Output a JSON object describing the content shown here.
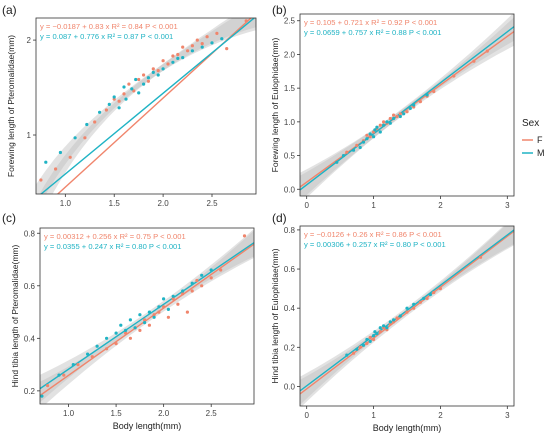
{
  "figure": {
    "legend": {
      "title": "Sex",
      "entries": [
        {
          "label": "F",
          "color": "#F0856C"
        },
        {
          "label": "M",
          "color": "#1FB3C4"
        }
      ]
    },
    "colors": {
      "F": "#F0856C",
      "M": "#1FB3C4",
      "band": "#BEBEBE",
      "axis": "#333333"
    }
  },
  "chart_data": [
    {
      "id": "a",
      "panel_label": "(a)",
      "type": "scatter",
      "xlabel": "",
      "ylabel": "Forewing length of Pteromalidae(mm)",
      "xlim": [
        0.7,
        2.95
      ],
      "ylim": [
        0.65,
        2.35
      ],
      "log_y": true,
      "xticks": [
        1.0,
        1.5,
        2.0,
        2.5
      ],
      "xtick_labels": [
        "1.0",
        "1.5",
        "2.0",
        "2.5"
      ],
      "yticks": [
        1,
        2
      ],
      "ytick_labels": [
        "1",
        "2"
      ],
      "equations": [
        {
          "sex": "F",
          "text": "y = −0.0187 + 0.83 x   R² = 0.84   P < 0.001"
        },
        {
          "sex": "M",
          "text": "y = 0.087 + 0.776 x   R² = 0.87   P < 0.001"
        }
      ],
      "series": [
        {
          "name": "F",
          "color": "#F0856C",
          "fit": [
            -0.0187,
            0.83
          ],
          "x": [
            0.75,
            0.9,
            1.05,
            1.2,
            1.3,
            1.42,
            1.5,
            1.55,
            1.6,
            1.65,
            1.7,
            1.75,
            1.8,
            1.85,
            1.9,
            1.95,
            2.0,
            2.05,
            2.1,
            2.15,
            2.2,
            2.25,
            2.3,
            2.35,
            2.4,
            2.45,
            2.55,
            2.65,
            2.85
          ],
          "y": [
            0.72,
            0.78,
            0.85,
            0.98,
            1.1,
            1.2,
            1.3,
            1.28,
            1.35,
            1.45,
            1.38,
            1.5,
            1.55,
            1.48,
            1.62,
            1.6,
            1.72,
            1.68,
            1.78,
            1.8,
            1.9,
            1.85,
            1.92,
            2.0,
            1.95,
            2.05,
            2.1,
            1.88,
            2.3
          ]
        },
        {
          "name": "M",
          "color": "#1FB3C4",
          "fit": [
            0.087,
            0.776
          ],
          "x": [
            0.8,
            0.95,
            1.1,
            1.22,
            1.35,
            1.45,
            1.5,
            1.55,
            1.6,
            1.62,
            1.68,
            1.72,
            1.75,
            1.8,
            1.85,
            1.9,
            1.95,
            2.0,
            2.1,
            2.15,
            2.2,
            2.3,
            2.4,
            2.5,
            2.6
          ],
          "y": [
            0.82,
            0.88,
            0.98,
            1.08,
            1.18,
            1.25,
            1.32,
            1.22,
            1.42,
            1.3,
            1.4,
            1.5,
            1.36,
            1.45,
            1.52,
            1.58,
            1.55,
            1.62,
            1.7,
            1.75,
            1.76,
            1.85,
            1.9,
            1.96,
            2.02
          ]
        }
      ]
    },
    {
      "id": "b",
      "panel_label": "(b)",
      "type": "scatter",
      "xlabel": "",
      "ylabel": "Forewing length of Eulophidae(mm)",
      "xlim": [
        -0.1,
        3.1
      ],
      "ylim": [
        -0.1,
        2.6
      ],
      "log_y": false,
      "xticks": [
        0,
        1,
        2,
        3
      ],
      "xtick_labels": [
        "0",
        "1",
        "2",
        "3"
      ],
      "yticks": [
        0,
        0.5,
        1.0,
        1.5,
        2.0,
        2.5
      ],
      "ytick_labels": [
        "0.0",
        "0.5",
        "1.0",
        "1.5",
        "2.0",
        "2.5"
      ],
      "equations": [
        {
          "sex": "F",
          "text": "y = 0.105 + 0.721 x   R² = 0.92   P < 0.001"
        },
        {
          "sex": "M",
          "text": "y = 0.0659 + 0.757 x   R² = 0.88   P < 0.001"
        }
      ],
      "series": [
        {
          "name": "F",
          "color": "#F0856C",
          "fit": [
            0.105,
            0.721
          ],
          "x": [
            0.6,
            0.75,
            0.85,
            0.9,
            0.95,
            1.0,
            1.05,
            1.1,
            1.15,
            1.2,
            1.25,
            1.3,
            1.35,
            1.4,
            1.5,
            1.6,
            1.7,
            1.8,
            1.9,
            2.2,
            2.5,
            2.7
          ],
          "y": [
            0.55,
            0.65,
            0.72,
            0.8,
            0.78,
            0.85,
            0.9,
            0.95,
            1.0,
            0.98,
            1.05,
            1.1,
            1.08,
            1.12,
            1.15,
            1.22,
            1.3,
            1.38,
            1.45,
            1.68,
            1.9,
            2.05
          ]
        },
        {
          "name": "M",
          "color": "#1FB3C4",
          "fit": [
            0.0659,
            0.757
          ],
          "x": [
            0.45,
            0.55,
            0.7,
            0.8,
            0.85,
            0.9,
            0.95,
            1.0,
            1.02,
            1.05,
            1.1,
            1.15,
            1.2,
            1.25,
            1.3,
            1.4,
            1.45,
            1.55,
            1.6,
            1.8
          ],
          "y": [
            0.4,
            0.5,
            0.58,
            0.62,
            0.7,
            0.75,
            0.82,
            0.78,
            0.88,
            0.92,
            0.85,
            0.95,
            1.0,
            0.98,
            1.05,
            1.08,
            1.12,
            1.2,
            1.25,
            1.4
          ]
        }
      ]
    },
    {
      "id": "c",
      "panel_label": "(c)",
      "type": "scatter",
      "xlabel": "Body length(mm)",
      "ylabel": "Hind tibia length of Pteromalidae(mm)",
      "xlim": [
        0.7,
        2.95
      ],
      "ylim": [
        0.15,
        0.82
      ],
      "log_y": false,
      "xticks": [
        1.0,
        1.5,
        2.0,
        2.5
      ],
      "xtick_labels": [
        "1.0",
        "1.5",
        "2.0",
        "2.5"
      ],
      "yticks": [
        0.2,
        0.4,
        0.6,
        0.8
      ],
      "ytick_labels": [
        "0.2",
        "0.4",
        "0.6",
        "0.8"
      ],
      "equations": [
        {
          "sex": "F",
          "text": "y = 0.00312 + 0.256 x   R² = 0.75   P < 0.001"
        },
        {
          "sex": "M",
          "text": "y = 0.0355 + 0.247 x   R² = 0.80   P < 0.001"
        }
      ],
      "series": [
        {
          "name": "F",
          "color": "#F0856C",
          "fit": [
            0.00312,
            0.256
          ],
          "x": [
            0.78,
            0.95,
            1.1,
            1.25,
            1.4,
            1.5,
            1.6,
            1.65,
            1.7,
            1.75,
            1.8,
            1.85,
            1.9,
            1.95,
            2.0,
            2.05,
            2.1,
            2.15,
            2.2,
            2.25,
            2.3,
            2.35,
            2.4,
            2.5,
            2.6,
            2.85
          ],
          "y": [
            0.22,
            0.26,
            0.3,
            0.33,
            0.36,
            0.38,
            0.42,
            0.4,
            0.44,
            0.43,
            0.47,
            0.45,
            0.49,
            0.5,
            0.52,
            0.48,
            0.55,
            0.53,
            0.57,
            0.5,
            0.58,
            0.62,
            0.6,
            0.63,
            0.66,
            0.79
          ]
        },
        {
          "name": "M",
          "color": "#1FB3C4",
          "fit": [
            0.0355,
            0.247
          ],
          "x": [
            0.72,
            0.9,
            1.05,
            1.2,
            1.3,
            1.4,
            1.5,
            1.55,
            1.6,
            1.65,
            1.7,
            1.75,
            1.8,
            1.85,
            1.9,
            1.95,
            2.0,
            2.05,
            2.1,
            2.2,
            2.3,
            2.4,
            2.5
          ],
          "y": [
            0.18,
            0.26,
            0.3,
            0.34,
            0.37,
            0.4,
            0.42,
            0.45,
            0.43,
            0.47,
            0.44,
            0.49,
            0.46,
            0.5,
            0.48,
            0.52,
            0.55,
            0.51,
            0.56,
            0.58,
            0.61,
            0.64,
            0.66
          ]
        }
      ]
    },
    {
      "id": "d",
      "panel_label": "(d)",
      "type": "scatter",
      "xlabel": "Body length(mm)",
      "ylabel": "Hind tibia length of Eulophidae(mm)",
      "xlim": [
        -0.1,
        3.1
      ],
      "ylim": [
        -0.1,
        0.82
      ],
      "log_y": false,
      "xticks": [
        0,
        1,
        2,
        3
      ],
      "xtick_labels": [
        "0",
        "1",
        "2",
        "3"
      ],
      "yticks": [
        0.0,
        0.2,
        0.4,
        0.6,
        0.8
      ],
      "ytick_labels": [
        "0.0",
        "0.2",
        "0.4",
        "0.6",
        "0.8"
      ],
      "equations": [
        {
          "sex": "F",
          "text": "y = −0.0126 + 0.26 x   R² = 0.86   P < 0.001"
        },
        {
          "sex": "M",
          "text": "y = 0.00306 + 0.257 x   R² = 0.80   P < 0.001"
        }
      ],
      "series": [
        {
          "name": "F",
          "color": "#F0856C",
          "fit": [
            -0.0126,
            0.26
          ],
          "x": [
            0.7,
            0.8,
            0.9,
            0.95,
            1.0,
            1.05,
            1.1,
            1.15,
            1.2,
            1.25,
            1.3,
            1.35,
            1.4,
            1.5,
            1.6,
            1.7,
            1.8,
            1.9,
            2.0,
            2.6
          ],
          "y": [
            0.17,
            0.2,
            0.22,
            0.25,
            0.24,
            0.27,
            0.28,
            0.3,
            0.29,
            0.32,
            0.33,
            0.35,
            0.36,
            0.38,
            0.4,
            0.43,
            0.45,
            0.48,
            0.5,
            0.66
          ]
        },
        {
          "name": "M",
          "color": "#1FB3C4",
          "fit": [
            0.00306,
            0.257
          ],
          "x": [
            0.6,
            0.75,
            0.85,
            0.9,
            0.95,
            1.0,
            1.02,
            1.05,
            1.1,
            1.15,
            1.2,
            1.25,
            1.3,
            1.4,
            1.5,
            1.6,
            1.75,
            1.85
          ],
          "y": [
            0.16,
            0.19,
            0.21,
            0.24,
            0.23,
            0.26,
            0.28,
            0.27,
            0.3,
            0.31,
            0.3,
            0.33,
            0.34,
            0.36,
            0.4,
            0.42,
            0.45,
            0.47
          ]
        }
      ]
    }
  ]
}
